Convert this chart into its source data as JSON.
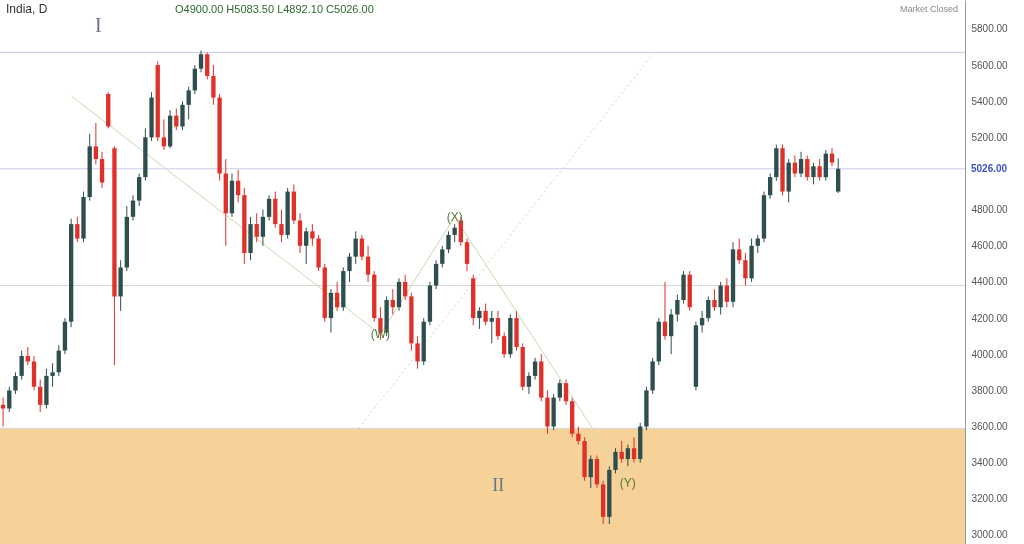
{
  "chart_data": {
    "type": "candlestick",
    "title": "India, D",
    "categories": [
      null,
      null,
      null,
      null,
      null,
      null,
      null,
      null,
      null,
      null,
      null,
      null,
      null,
      null,
      null,
      null,
      null,
      null,
      null,
      null,
      null,
      null,
      null,
      null,
      null,
      null,
      null,
      null,
      null,
      null,
      null,
      null,
      null,
      null,
      null,
      null,
      null,
      null,
      null,
      null,
      null,
      null,
      null,
      null,
      null,
      null,
      null,
      null,
      null,
      null,
      null,
      null,
      null,
      null,
      null,
      null,
      null,
      null,
      null,
      null,
      null,
      null,
      null,
      null,
      null,
      null,
      null,
      null,
      null,
      null,
      null,
      null,
      null,
      null,
      null,
      null,
      null,
      null,
      null,
      null,
      null,
      null,
      null,
      null,
      null,
      null,
      null,
      null,
      null,
      null,
      null,
      null,
      null,
      null,
      null,
      null,
      null,
      null,
      null,
      null,
      null,
      null,
      null,
      null,
      null,
      null,
      null,
      null,
      null,
      null,
      null,
      null,
      null,
      null,
      null,
      null,
      null,
      null,
      null,
      null,
      null,
      null,
      null,
      null,
      null,
      null,
      null,
      null,
      null,
      null,
      null,
      null,
      null,
      null,
      null,
      null,
      null,
      null,
      null,
      null,
      null,
      null,
      null,
      null,
      null,
      null,
      null,
      null,
      null,
      null,
      null,
      null,
      null,
      null,
      null,
      null
    ],
    "ohlc": [
      [
        3720,
        3760,
        3600,
        3700
      ],
      [
        3700,
        3820,
        3680,
        3800
      ],
      [
        3800,
        3900,
        3780,
        3880
      ],
      [
        3880,
        4020,
        3860,
        3990
      ],
      [
        3990,
        4040,
        3940,
        3960
      ],
      [
        3960,
        3990,
        3800,
        3820
      ],
      [
        3820,
        3860,
        3680,
        3720
      ],
      [
        3720,
        3920,
        3700,
        3880
      ],
      [
        3880,
        3950,
        3820,
        3900
      ],
      [
        3900,
        4050,
        3880,
        4020
      ],
      [
        4020,
        4200,
        4000,
        4180
      ],
      [
        4180,
        4750,
        4150,
        4720
      ],
      [
        4720,
        4760,
        4620,
        4640
      ],
      [
        4640,
        4900,
        4620,
        4870
      ],
      [
        4870,
        5220,
        4850,
        5150
      ],
      [
        5150,
        5280,
        5050,
        5080
      ],
      [
        5080,
        5120,
        4920,
        4950
      ],
      [
        5440,
        5450,
        5250,
        5260
      ],
      [
        5140,
        5150,
        3940,
        4320
      ],
      [
        4320,
        4520,
        4240,
        4480
      ],
      [
        4480,
        4820,
        4460,
        4760
      ],
      [
        4760,
        4880,
        4740,
        4850
      ],
      [
        4850,
        5000,
        4820,
        4980
      ],
      [
        4980,
        5250,
        4960,
        5200
      ],
      [
        5200,
        5450,
        5180,
        5420
      ],
      [
        5600,
        5620,
        5180,
        5200
      ],
      [
        5200,
        5300,
        5130,
        5150
      ],
      [
        5150,
        5350,
        5140,
        5320
      ],
      [
        5320,
        5360,
        5240,
        5260
      ],
      [
        5260,
        5400,
        5240,
        5380
      ],
      [
        5380,
        5480,
        5300,
        5460
      ],
      [
        5460,
        5600,
        5440,
        5580
      ],
      [
        5580,
        5680,
        5560,
        5660
      ],
      [
        5660,
        5670,
        5520,
        5540
      ],
      [
        5540,
        5600,
        5380,
        5420
      ],
      [
        5420,
        5440,
        4960,
        5000
      ],
      [
        5000,
        5080,
        4600,
        4780
      ],
      [
        4780,
        5000,
        4760,
        4960
      ],
      [
        4960,
        5020,
        4840,
        4880
      ],
      [
        4880,
        4920,
        4500,
        4560
      ],
      [
        4560,
        4760,
        4520,
        4720
      ],
      [
        4720,
        4780,
        4620,
        4650
      ],
      [
        4650,
        4800,
        4600,
        4760
      ],
      [
        4760,
        4880,
        4740,
        4860
      ],
      [
        4860,
        4900,
        4700,
        4720
      ],
      [
        4720,
        4800,
        4620,
        4660
      ],
      [
        4660,
        4920,
        4640,
        4900
      ],
      [
        4900,
        4940,
        4720,
        4740
      ],
      [
        4740,
        4780,
        4560,
        4600
      ],
      [
        4600,
        4700,
        4500,
        4680
      ],
      [
        4680,
        4720,
        4600,
        4640
      ],
      [
        4640,
        4660,
        4460,
        4480
      ],
      [
        4480,
        4500,
        4180,
        4200
      ],
      [
        4200,
        4360,
        4120,
        4340
      ],
      [
        4340,
        4400,
        4240,
        4260
      ],
      [
        4260,
        4480,
        4240,
        4460
      ],
      [
        4460,
        4560,
        4400,
        4540
      ],
      [
        4540,
        4680,
        4500,
        4640
      ],
      [
        4640,
        4660,
        4520,
        4540
      ],
      [
        4540,
        4600,
        4400,
        4440
      ],
      [
        4440,
        4460,
        4180,
        4200
      ],
      [
        4200,
        4260,
        4080,
        4120
      ],
      [
        4120,
        4320,
        4100,
        4300
      ],
      [
        4300,
        4360,
        4220,
        4260
      ],
      [
        4260,
        4420,
        4240,
        4400
      ],
      [
        4400,
        4440,
        4300,
        4320
      ],
      [
        4320,
        4340,
        4020,
        4060
      ],
      [
        4060,
        4100,
        3920,
        3960
      ],
      [
        3960,
        4200,
        3940,
        4180
      ],
      [
        4180,
        4400,
        4160,
        4380
      ],
      [
        4380,
        4520,
        4360,
        4500
      ],
      [
        4500,
        4600,
        4480,
        4580
      ],
      [
        4580,
        4680,
        4560,
        4660
      ],
      [
        4660,
        4720,
        4620,
        4700
      ],
      [
        4740,
        4760,
        4600,
        4620
      ],
      [
        4620,
        4640,
        4460,
        4500
      ],
      [
        4420,
        4440,
        4160,
        4200
      ],
      [
        4200,
        4260,
        4140,
        4240
      ],
      [
        4240,
        4280,
        4160,
        4180
      ],
      [
        4180,
        4240,
        4060,
        4200
      ],
      [
        4200,
        4240,
        4080,
        4100
      ],
      [
        4100,
        4120,
        3980,
        4000
      ],
      [
        4000,
        4220,
        3980,
        4200
      ],
      [
        4200,
        4240,
        4020,
        4040
      ],
      [
        4040,
        4060,
        3800,
        3820
      ],
      [
        3820,
        3900,
        3780,
        3880
      ],
      [
        3880,
        3980,
        3860,
        3960
      ],
      [
        3960,
        4000,
        3740,
        3760
      ],
      [
        3760,
        3800,
        3560,
        3600
      ],
      [
        3600,
        3780,
        3580,
        3760
      ],
      [
        3760,
        3860,
        3740,
        3840
      ],
      [
        3840,
        3860,
        3720,
        3740
      ],
      [
        3740,
        3760,
        3540,
        3560
      ],
      [
        3560,
        3600,
        3500,
        3520
      ],
      [
        3520,
        3540,
        3300,
        3320
      ],
      [
        3320,
        3440,
        3260,
        3420
      ],
      [
        3420,
        3440,
        3260,
        3280
      ],
      [
        3280,
        3300,
        3060,
        3100
      ],
      [
        3100,
        3380,
        3060,
        3360
      ],
      [
        3360,
        3480,
        3340,
        3460
      ],
      [
        3460,
        3520,
        3400,
        3420
      ],
      [
        3420,
        3500,
        3380,
        3480
      ],
      [
        3480,
        3540,
        3400,
        3420
      ],
      [
        3420,
        3620,
        3400,
        3600
      ],
      [
        3600,
        3820,
        3580,
        3800
      ],
      [
        3800,
        3980,
        3780,
        3960
      ],
      [
        3960,
        4200,
        3940,
        4180
      ],
      [
        4180,
        4400,
        4080,
        4100
      ],
      [
        4100,
        4250,
        4000,
        4220
      ],
      [
        4220,
        4330,
        4180,
        4300
      ],
      [
        4300,
        4460,
        4280,
        4440
      ],
      [
        4440,
        4460,
        4240,
        4260
      ],
      [
        3820,
        4180,
        3800,
        4160
      ],
      [
        4160,
        4240,
        4120,
        4200
      ],
      [
        4200,
        4320,
        4180,
        4300
      ],
      [
        4300,
        4360,
        4240,
        4260
      ],
      [
        4260,
        4400,
        4220,
        4380
      ],
      [
        4380,
        4420,
        4260,
        4290
      ],
      [
        4290,
        4620,
        4260,
        4580
      ],
      [
        4580,
        4640,
        4500,
        4520
      ],
      [
        4520,
        4560,
        4380,
        4420
      ],
      [
        4420,
        4640,
        4400,
        4600
      ],
      [
        4600,
        4660,
        4560,
        4640
      ],
      [
        4640,
        4900,
        4620,
        4880
      ],
      [
        4880,
        5000,
        4860,
        4980
      ],
      [
        4980,
        5160,
        4960,
        5140
      ],
      [
        5140,
        5160,
        4880,
        4900
      ],
      [
        4900,
        5080,
        4840,
        5060
      ],
      [
        5060,
        5100,
        4980,
        5000
      ],
      [
        5000,
        5120,
        4980,
        5080
      ],
      [
        5080,
        5100,
        4960,
        4980
      ],
      [
        4980,
        5060,
        4940,
        5040
      ],
      [
        5040,
        5080,
        4960,
        4980
      ],
      [
        4980,
        5130,
        4960,
        5110
      ],
      [
        5110,
        5140,
        5040,
        5060
      ],
      [
        4900,
        5083.5,
        4892.1,
        5026
      ],
      null,
      null,
      null,
      null,
      null,
      null,
      null,
      null,
      null,
      null,
      null,
      null,
      null,
      null,
      null,
      null,
      null,
      null,
      null,
      null
    ],
    "series": [
      {
        "type": "line",
        "color": "#c9dbb2",
        "line_style": "solid",
        "values": [
          null,
          null,
          null,
          null,
          null,
          null,
          null,
          null,
          null,
          null,
          null,
          5430,
          null,
          null,
          null,
          null,
          null,
          null,
          null,
          null,
          null,
          null,
          null,
          null,
          null,
          null,
          null,
          null,
          null,
          null,
          null,
          null,
          null,
          null,
          null,
          null,
          null,
          null,
          null,
          null,
          null,
          null,
          null,
          null,
          null,
          null,
          null,
          null,
          null,
          null,
          null,
          null,
          null,
          null,
          null,
          null,
          null,
          null,
          null,
          null,
          null,
          4110,
          null,
          null,
          null,
          null,
          null,
          null,
          null,
          null,
          null,
          null,
          null,
          4760,
          null,
          null,
          null,
          null,
          null,
          null,
          null,
          null,
          null,
          null,
          null,
          null,
          null,
          null,
          null,
          null,
          null,
          null,
          null,
          null,
          null,
          null,
          null,
          null,
          null,
          null,
          null,
          3290,
          null,
          null,
          null,
          null,
          null,
          null,
          null,
          null,
          null,
          null,
          null,
          null,
          null,
          null,
          null,
          null,
          null,
          null,
          null,
          null,
          null,
          null,
          null,
          null,
          null,
          null,
          null,
          null,
          null,
          null,
          null,
          null,
          null,
          null,
          null,
          null,
          null,
          null,
          null,
          null,
          null,
          null,
          null,
          null,
          null,
          null,
          null,
          null,
          null,
          null,
          null,
          null,
          null,
          null
        ]
      },
      {
        "type": "line",
        "color": "#cfd8c6",
        "line_style": "dotted",
        "values": [
          null,
          null,
          null,
          null,
          null,
          null,
          null,
          null,
          null,
          null,
          null,
          null,
          null,
          null,
          null,
          null,
          null,
          null,
          null,
          null,
          null,
          null,
          null,
          null,
          null,
          null,
          null,
          null,
          null,
          null,
          null,
          null,
          null,
          null,
          null,
          null,
          null,
          null,
          null,
          null,
          null,
          null,
          null,
          2960,
          null,
          null,
          null,
          null,
          null,
          null,
          null,
          null,
          null,
          null,
          null,
          null,
          null,
          null,
          null,
          null,
          null,
          null,
          null,
          null,
          null,
          null,
          null,
          null,
          null,
          null,
          null,
          null,
          null,
          null,
          null,
          null,
          null,
          null,
          null,
          null,
          null,
          null,
          null,
          null,
          null,
          null,
          null,
          null,
          null,
          null,
          null,
          null,
          null,
          null,
          null,
          null,
          null,
          null,
          null,
          null,
          null,
          null,
          null,
          null,
          null,
          5660,
          null,
          null,
          null,
          null,
          null,
          null,
          null,
          null,
          null,
          null,
          null,
          null,
          null,
          null,
          null,
          null,
          null,
          null,
          null,
          null,
          null,
          null,
          null,
          null,
          null,
          null,
          null,
          null,
          null,
          null,
          null,
          null,
          null,
          null,
          null,
          null,
          null,
          null,
          null,
          null,
          null,
          null,
          null,
          null,
          null,
          null,
          null,
          null,
          null,
          null
        ]
      }
    ],
    "ylim": [
      2950,
      5960
    ],
    "yticks": [
      {
        "value": 3000,
        "label": "3000.00"
      },
      {
        "value": 3200,
        "label": "3200.00"
      },
      {
        "value": 3400,
        "label": "3400.00"
      },
      {
        "value": 3600,
        "label": "3600.00"
      },
      {
        "value": 3800,
        "label": "3800.00"
      },
      {
        "value": 4000,
        "label": "4000.00"
      },
      {
        "value": 4200,
        "label": "4200.00"
      },
      {
        "value": 4400,
        "label": "4400.00"
      },
      {
        "value": 4600,
        "label": "4600.00"
      },
      {
        "value": 4800,
        "label": "4800.00"
      },
      {
        "value": 5200,
        "label": "5200.00"
      },
      {
        "value": 5400,
        "label": "5400.00"
      },
      {
        "value": 5600,
        "label": "5600.00"
      },
      {
        "value": 5800,
        "label": "5800.00"
      }
    ],
    "tick_labels": "y",
    "ref_lines": [
      {
        "axis": "y",
        "value": 5670,
        "color": "#c8cbef"
      },
      {
        "axis": "y",
        "value": 5026,
        "label": "5026.00",
        "color": "#c8cbef"
      },
      {
        "axis": "y",
        "value": 4380,
        "color": "#d6d6d6"
      },
      {
        "axis": "y",
        "value": 3590,
        "color": "#d6d6d6"
      }
    ],
    "bands": [
      {
        "axis": "y",
        "from": 2950,
        "to": 3590,
        "label": "II",
        "color": "#f5cd8e"
      }
    ],
    "annotations": [
      "O4900.00 H5083.50 L4892.10 C5026.00",
      "Market Closed",
      "I",
      "(W)",
      "(X)",
      "(Y)"
    ]
  }
}
